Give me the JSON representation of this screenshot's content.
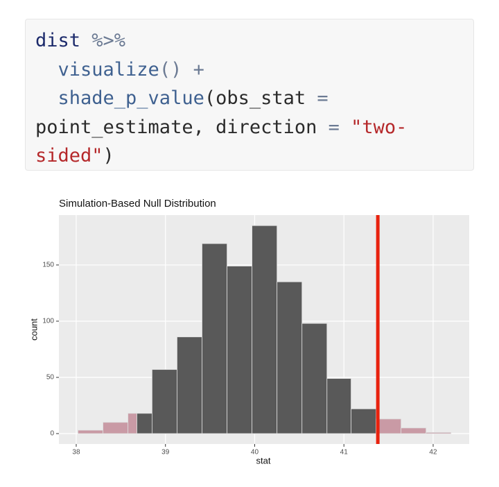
{
  "code": {
    "lines": [
      [
        {
          "text": "dist",
          "color": "#1c2a6b"
        },
        {
          "text": " %>%",
          "color": "#6b7a93"
        }
      ],
      [
        {
          "text": "  visualize",
          "color": "#3f6190"
        },
        {
          "text": "()",
          "color": "#6b7a93"
        },
        {
          "text": " +",
          "color": "#6b7a93"
        }
      ],
      [
        {
          "text": "  shade_p_value",
          "color": "#3f6190"
        },
        {
          "text": "(obs_stat",
          "color": "#2b2b2b"
        },
        {
          "text": " =",
          "color": "#6b7a93"
        }
      ],
      [
        {
          "text": "point_estimate, direction",
          "color": "#2b2b2b"
        },
        {
          "text": " =",
          "color": "#6b7a93"
        },
        {
          "text": " \"two-",
          "color": "#b5282a"
        }
      ],
      [
        {
          "text": "sided\"",
          "color": "#b5282a"
        },
        {
          "text": ")",
          "color": "#2b2b2b"
        }
      ]
    ]
  },
  "chart_data": {
    "type": "histogram",
    "title": "Simulation-Based Null Distribution",
    "x_label": "stat",
    "y_label": "count",
    "bins": [
      38.02,
      38.3,
      38.58,
      38.85,
      39.13,
      39.41,
      39.69,
      39.97,
      40.25,
      40.53,
      40.81,
      41.08,
      41.36,
      41.64,
      41.92,
      42.2
    ],
    "values": [
      3,
      10,
      18,
      57,
      86,
      169,
      149,
      185,
      135,
      98,
      49,
      22,
      13,
      5,
      1
    ],
    "color": "#595959",
    "shade_color": "#c99aa5",
    "line_color": "#e8220e",
    "obs_stat": 41.38,
    "shade_mirror": 38.68,
    "xlim": [
      37.806,
      42.404
    ],
    "xticks": [
      38,
      39,
      40,
      41,
      42
    ],
    "ylim": [
      -9.25,
      194.4
    ],
    "yticks": [
      0,
      50,
      100,
      150
    ],
    "grid": true
  }
}
